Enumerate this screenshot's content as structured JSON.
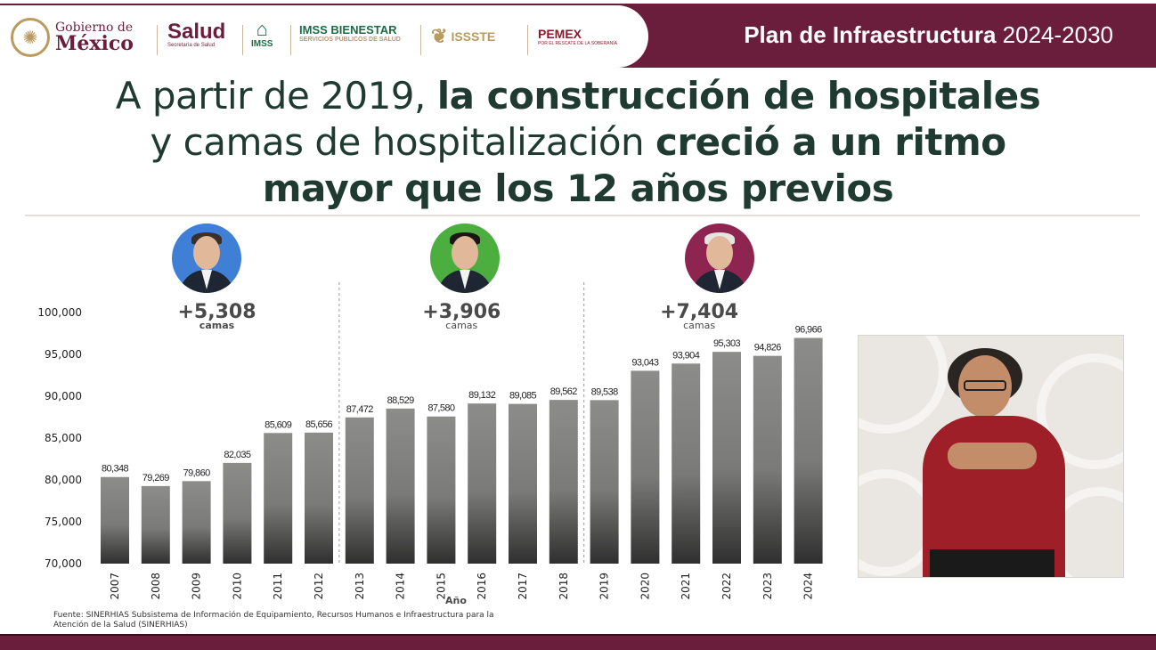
{
  "header": {
    "gobierno_line1": "Gobierno de",
    "gobierno_line2": "México",
    "salud": "Salud",
    "salud_sub": "Secretaría de Salud",
    "imss": "IMSS",
    "imss_bienestar": "IMSS BIENESTAR",
    "imss_bienestar_sub": "SERVICIOS PÚBLICOS DE SALUD",
    "issste": "ISSSTE",
    "pemex": "PEMEX",
    "pemex_sub": "POR EL RESCATE DE LA SOBERANÍA",
    "plan_bold": "Plan de Infraestructura",
    "plan_years": "2024-2030"
  },
  "headline": {
    "line1_normal": "A partir de 2019,",
    "line1_bold": "la construcción de hospitales",
    "line2_normal": "y camas de hospitalización",
    "line2_bold": "creció a un ritmo",
    "line3_bold": "mayor que los 12 años previos"
  },
  "chart_data": {
    "type": "bar",
    "categories": [
      "2007",
      "2008",
      "2009",
      "2010",
      "2011",
      "2012",
      "2013",
      "2014",
      "2015",
      "2016",
      "2017",
      "2018",
      "2019",
      "2020",
      "2021",
      "2022",
      "2023",
      "2024"
    ],
    "values": [
      80348,
      79269,
      79860,
      82035,
      85609,
      85656,
      87472,
      88529,
      87580,
      89132,
      89085,
      89562,
      89538,
      93043,
      93904,
      95303,
      94826,
      96966
    ],
    "value_labels": [
      "80,348",
      "79,269",
      "79,860",
      "82,035",
      "85,609",
      "85,656",
      "87,472",
      "88,529",
      "87,580",
      "89,132",
      "89,085",
      "89,562",
      "89,538",
      "93,043",
      "93,904",
      "95,303",
      "94,826",
      "96,966"
    ],
    "xlabel": "Año",
    "ylabel": "",
    "ylim": [
      70000,
      100000
    ],
    "yticks": [
      70000,
      75000,
      80000,
      85000,
      90000,
      95000,
      100000
    ],
    "ytick_labels": [
      "70,000",
      "75,000",
      "80,000",
      "85,000",
      "90,000",
      "95,000",
      "100,000"
    ],
    "annotations": [
      {
        "value": "+5,308",
        "unit": "camas",
        "from": "2007",
        "to": "2012"
      },
      {
        "value": "+3,906",
        "unit": "camas",
        "from": "2013",
        "to": "2018"
      },
      {
        "value": "+7,404",
        "unit": "camas",
        "from": "2019",
        "to": "2024"
      }
    ],
    "grid": false,
    "legend": "none"
  },
  "source_text": "Fuente: SINERHIAS Subsistema de Información de Equipamiento, Recursos Humanos e Infraestructura para la Atención de la Salud (SINERHIAS)",
  "colors": {
    "maroon": "#6b1e3c",
    "bar_top": "#8c8c8a",
    "bar_bottom": "#2f2f2f",
    "headline": "#1f3a30",
    "portrait_1_bg": "#3f7fd6",
    "portrait_2_bg": "#4cae3f",
    "portrait_3_bg": "#8e2450"
  }
}
